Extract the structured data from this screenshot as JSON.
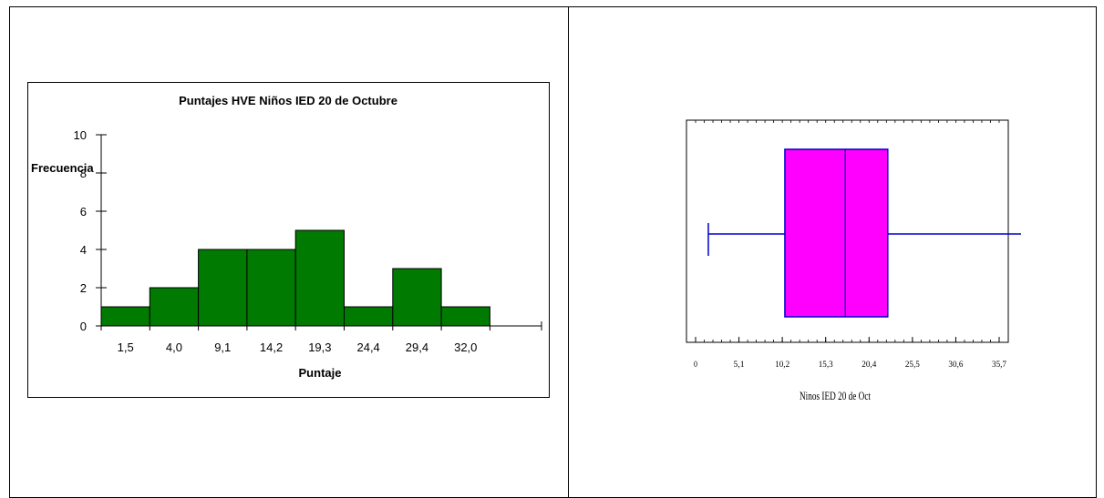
{
  "chart_data": [
    {
      "type": "bar",
      "title": "Puntajes HVE Niños IED 20 de Octubre",
      "xlabel": "Puntaje",
      "ylabel": "Frecuencia",
      "categories": [
        "1,5",
        "4,0",
        "9,1",
        "14,2",
        "19,3",
        "24,4",
        "29,4",
        "32,0"
      ],
      "values": [
        1,
        2,
        4,
        4,
        5,
        1,
        3,
        1
      ],
      "ylim": [
        0,
        10
      ],
      "yticks": [
        0,
        2,
        4,
        6,
        8,
        10
      ],
      "bar_color": "#007a00",
      "grid": false,
      "legend": "none"
    },
    {
      "type": "box",
      "title": "",
      "xlabel": "Ninos IED 20 de Oct",
      "xlim": [
        0,
        35.7
      ],
      "xticks": [
        "0",
        "5,1",
        "10,2",
        "15,3",
        "20,4",
        "25,5",
        "30,6",
        "35,7"
      ],
      "min": 1.5,
      "q1": 10.5,
      "median": 17.6,
      "q3": 22.6,
      "max": 40.2,
      "box_color": "#ff00ff",
      "line_color": "#0000cc",
      "grid": false,
      "legend": "none"
    }
  ]
}
